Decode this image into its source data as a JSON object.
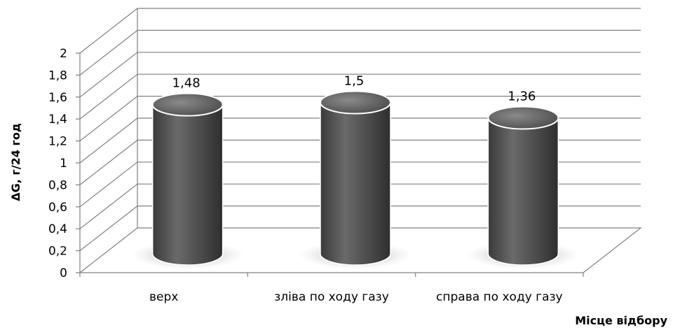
{
  "chart_data": {
    "type": "bar",
    "title": "",
    "xlabel": "Місце відбору",
    "ylabel": "ΔG, г/24 год",
    "categories": [
      "верх",
      "зліва по ходу газу",
      "справа по ходу газу"
    ],
    "values": [
      1.48,
      1.5,
      1.36
    ],
    "data_labels": [
      "1,48",
      "1,5",
      "1,36"
    ],
    "yticks": [
      "0",
      "0,2",
      "0,4",
      "0,6",
      "0,8",
      "1",
      "1,2",
      "1,4",
      "1,6",
      "1,8",
      "2"
    ],
    "ylim": [
      0,
      2
    ],
    "grid": true,
    "legend": "none",
    "colors": {
      "bar": "#555555",
      "bar_top": "#6e6e6e",
      "grid": "#808080"
    }
  }
}
